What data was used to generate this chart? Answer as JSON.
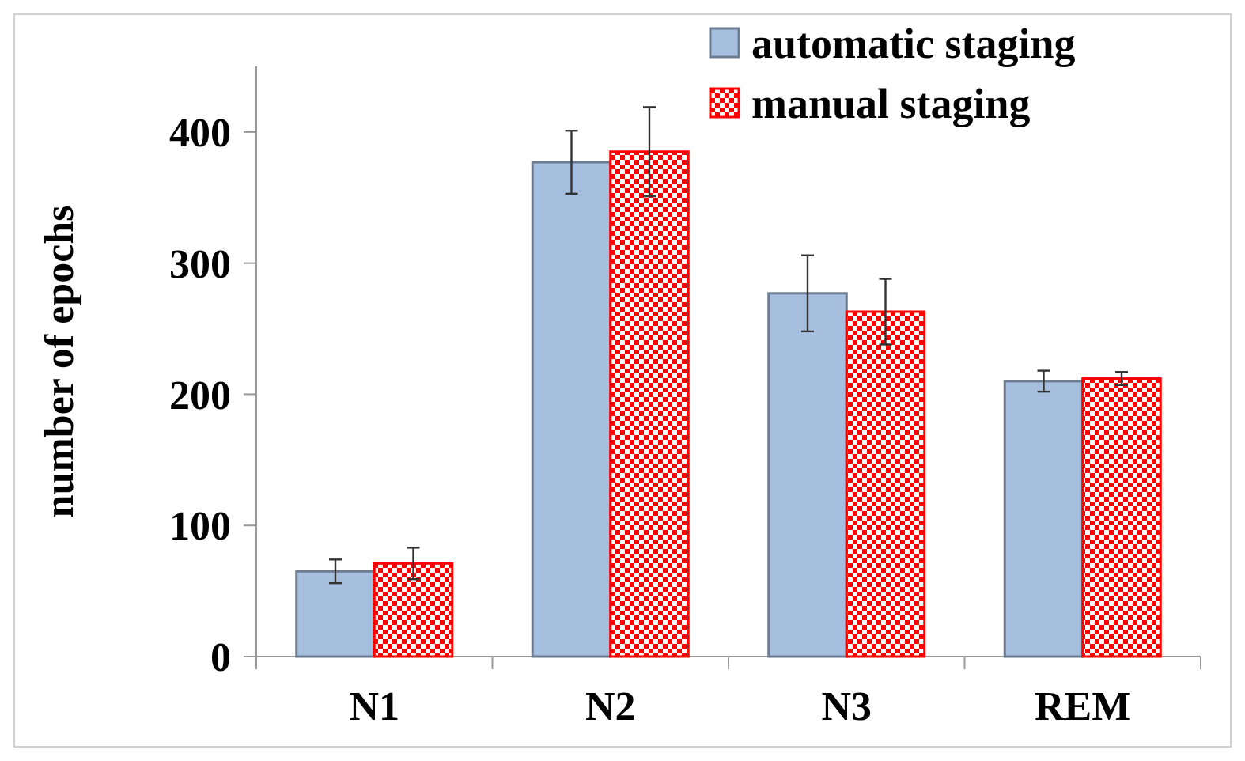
{
  "chart_data": {
    "type": "bar",
    "ylabel": "number of epochs",
    "categories": [
      "N1",
      "N2",
      "N3",
      "REM"
    ],
    "series": [
      {
        "name": "automatic staging",
        "color": "#a7bfde",
        "values": [
          65,
          377,
          277,
          210
        ],
        "errors": [
          9,
          24,
          29,
          8
        ]
      },
      {
        "name": "manual staging",
        "color": "#ff0000",
        "values": [
          71,
          385,
          263,
          212
        ],
        "errors": [
          12,
          34,
          25,
          5
        ]
      }
    ],
    "ylim": [
      0,
      450
    ],
    "yticks": [
      0,
      100,
      200,
      300,
      400
    ],
    "grid": false,
    "legend": "top right"
  }
}
